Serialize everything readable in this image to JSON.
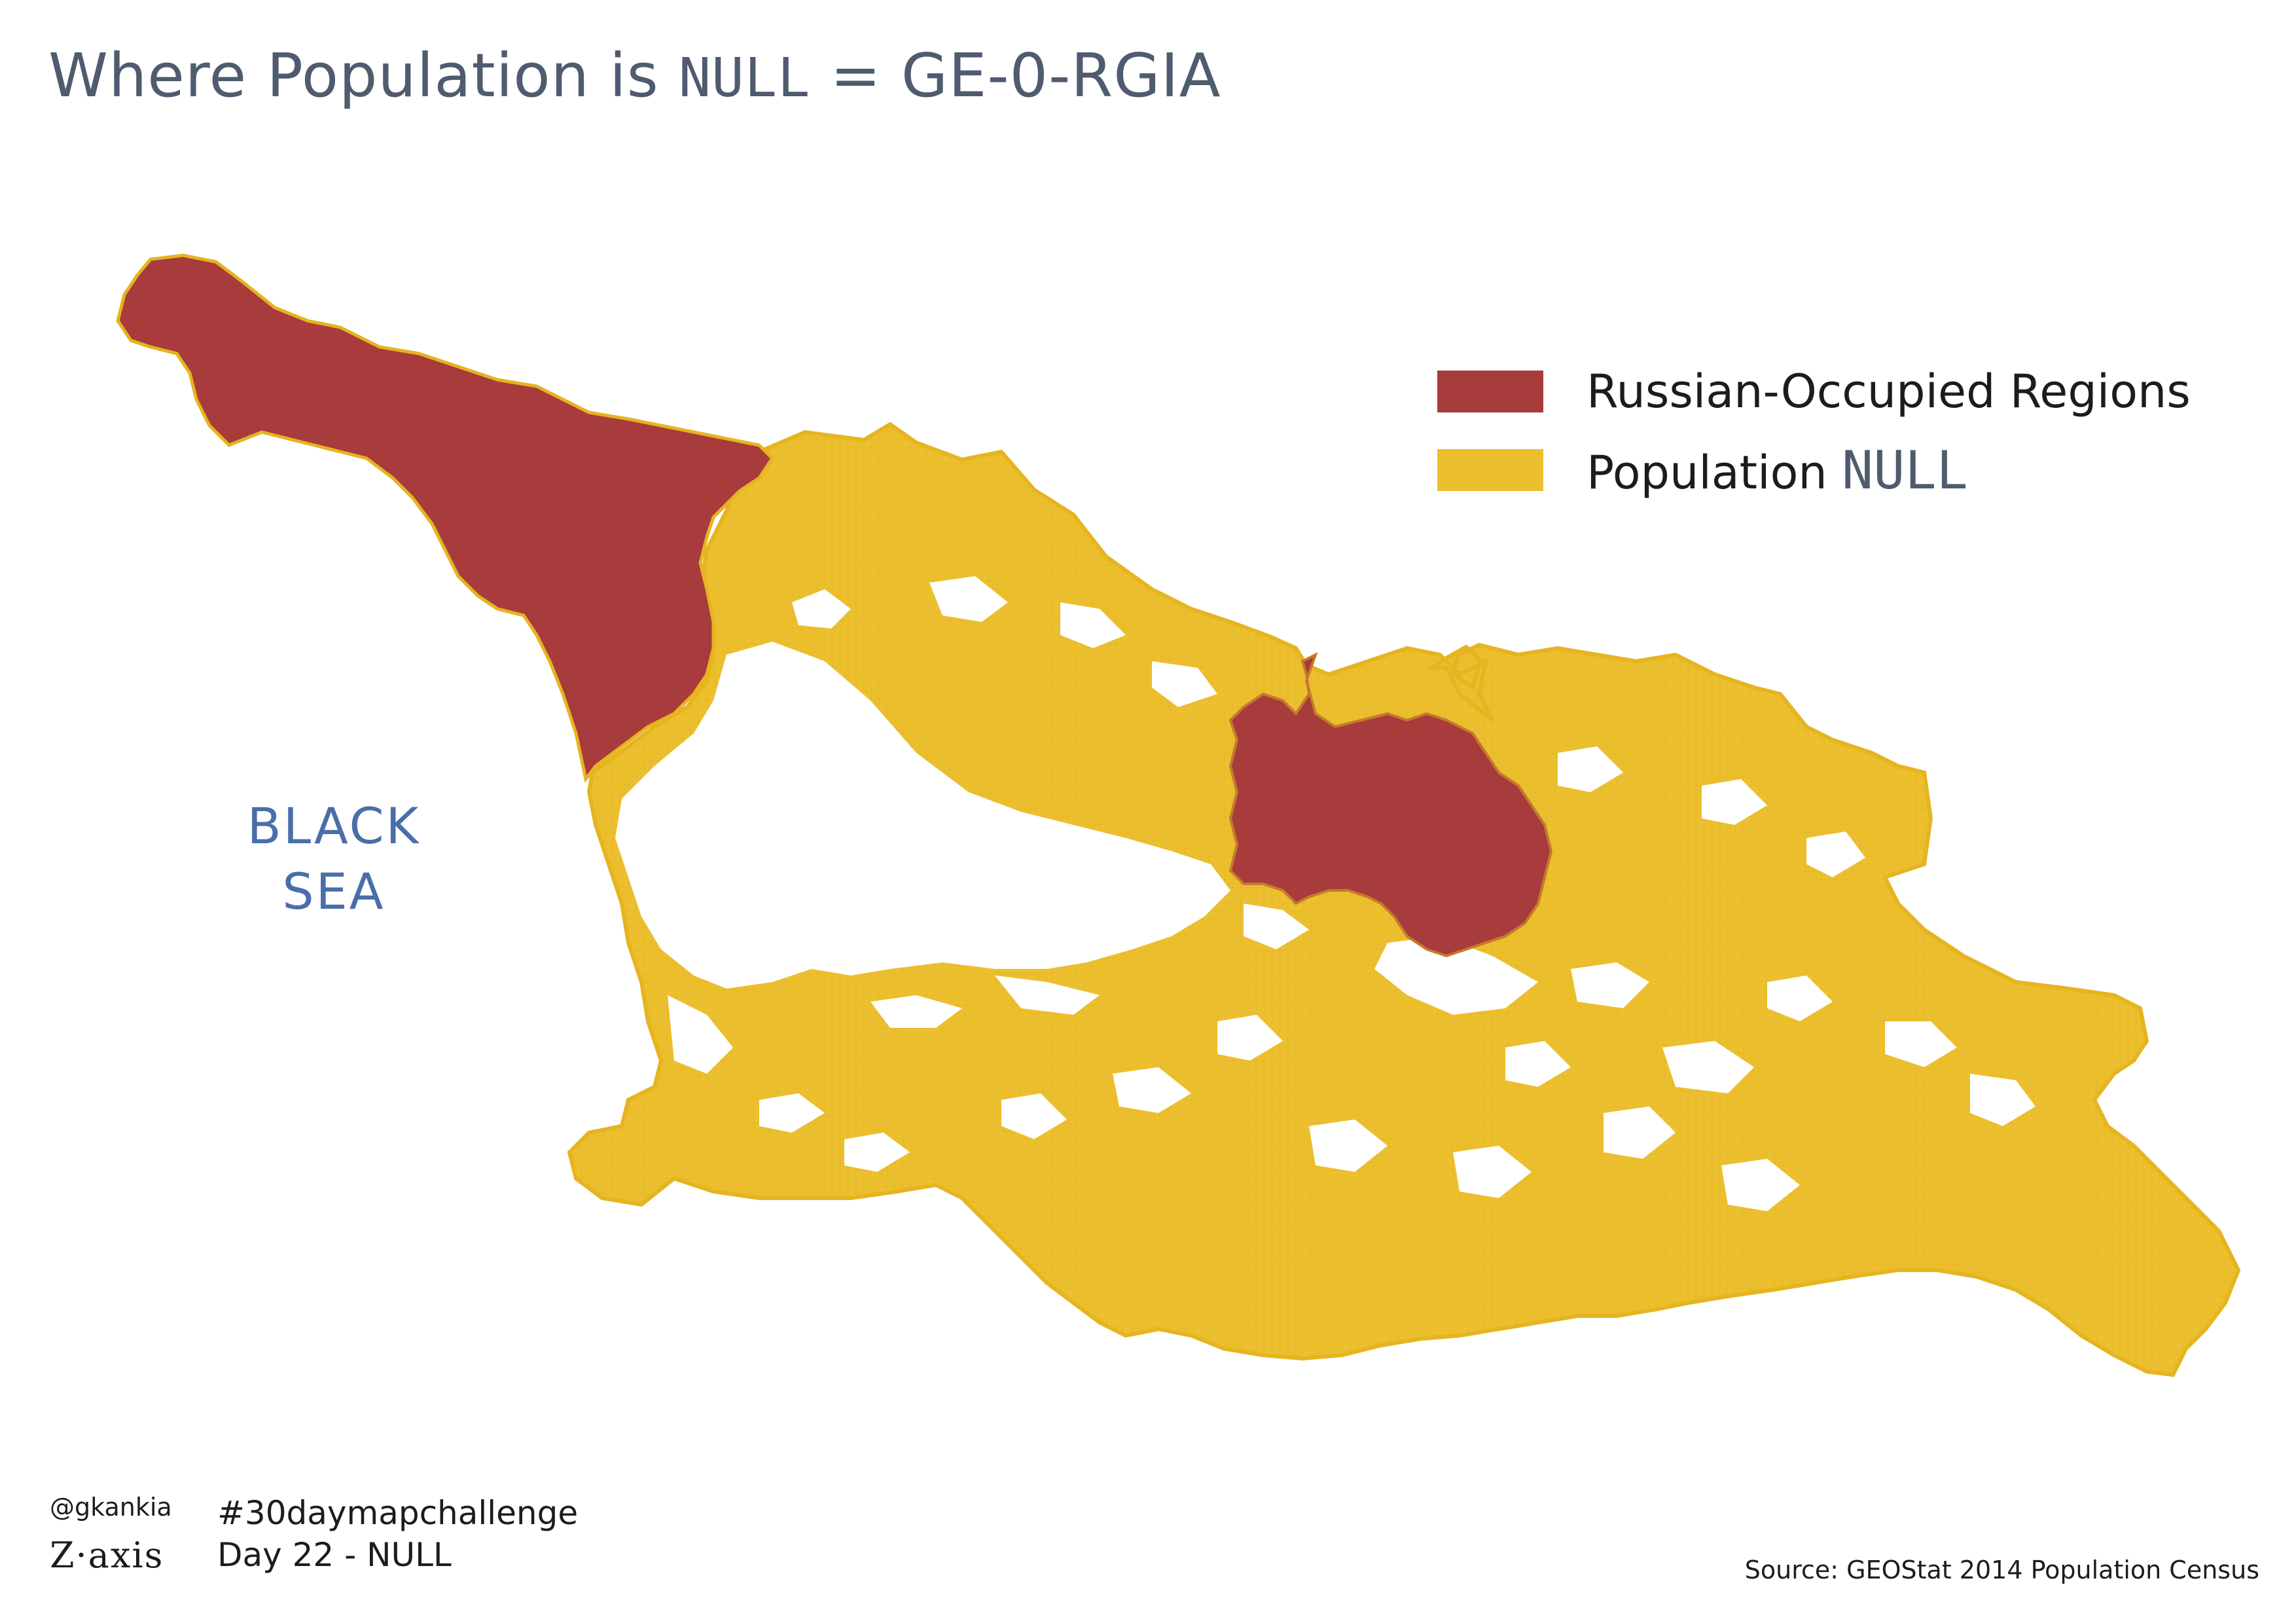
{
  "title": {
    "prefix": "Where Population is ",
    "null_word": "NULL",
    "suffix": " = GE-0-RGIA"
  },
  "legend": [
    {
      "label": "Russian-Occupied Regions",
      "label_extra": "",
      "color": "#a83b3b"
    },
    {
      "label": "Population ",
      "label_extra": "NULL",
      "color": "#ecbf2e"
    }
  ],
  "sea_label": {
    "line1": "BLACK",
    "line2": "SEA"
  },
  "footer": {
    "handle": "@gkankia",
    "logo": "Z·axis",
    "hashtag": "#30daymapchallenge",
    "day": "Day 22 - NULL",
    "source": "Source: GEOStat 2014 Population Census"
  },
  "colors": {
    "occupied": "#a83b3b",
    "null_population": "#ecbf2e",
    "populated": "#ffffff",
    "title_text": "#4f5b6e",
    "sea_text": "#4a6ea9"
  }
}
